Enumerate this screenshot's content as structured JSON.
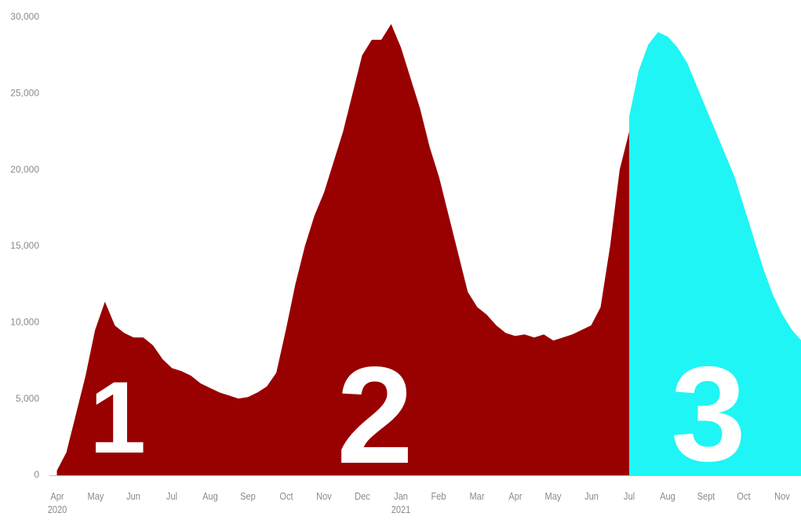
{
  "chart_data": {
    "type": "area",
    "categories": [
      "Apr 2020",
      null,
      null,
      null,
      "May",
      null,
      null,
      null,
      "Jun",
      null,
      null,
      null,
      "Jul",
      null,
      null,
      null,
      "Aug",
      null,
      null,
      null,
      "Sep",
      null,
      null,
      null,
      "Oct",
      null,
      null,
      null,
      "Nov",
      null,
      null,
      null,
      "Dec",
      null,
      null,
      null,
      "Jan 2021",
      null,
      null,
      null,
      "Feb",
      null,
      null,
      null,
      "Mar",
      null,
      null,
      null,
      "Apr",
      null,
      null,
      null,
      "May",
      null,
      null,
      null,
      "Jun",
      null,
      null,
      null,
      "Jul",
      null,
      null,
      null,
      "Aug",
      null,
      null,
      null,
      "Sept",
      null,
      null,
      null,
      "Oct",
      null,
      null,
      null,
      "Nov",
      null,
      null
    ],
    "series": [
      {
        "color": "#990000",
        "values": [
          300,
          1500,
          4000,
          6500,
          9500,
          11300,
          9800,
          9300,
          9000,
          9000,
          8500,
          7600,
          7000,
          6800,
          6500,
          6000,
          5700,
          5400,
          5200,
          5000,
          5100,
          5400,
          5800,
          6700,
          9500,
          12500,
          15000,
          17000,
          18500,
          20500,
          22500,
          25000,
          27500,
          28500,
          28500,
          29500,
          28000,
          26000,
          24000,
          21500,
          19500,
          17000,
          14500,
          12000,
          11000,
          10500,
          9800,
          9300,
          9100,
          9200,
          9000,
          9200,
          8800,
          9000,
          9200,
          9500,
          9800,
          11000,
          15000,
          20000,
          22500,
          null,
          null,
          null,
          null,
          null,
          null,
          null,
          null,
          null,
          null,
          null,
          null,
          null,
          null,
          null,
          null,
          null,
          null
        ]
      },
      {
        "color": "#1ff5f5",
        "values": [
          null,
          null,
          null,
          null,
          null,
          null,
          null,
          null,
          null,
          null,
          null,
          null,
          null,
          null,
          null,
          null,
          null,
          null,
          null,
          null,
          null,
          null,
          null,
          null,
          null,
          null,
          null,
          null,
          null,
          null,
          null,
          null,
          null,
          null,
          null,
          null,
          null,
          null,
          null,
          null,
          null,
          null,
          null,
          null,
          null,
          null,
          null,
          null,
          null,
          null,
          null,
          null,
          null,
          null,
          null,
          null,
          null,
          null,
          null,
          null,
          23500,
          26500,
          28200,
          29000,
          28700,
          28000,
          27000,
          25500,
          24000,
          22500,
          21000,
          19500,
          17500,
          15500,
          13500,
          11800,
          10500,
          9500,
          8800
        ]
      }
    ],
    "annotations": [
      "1",
      "2",
      "3"
    ],
    "ylim": [
      0,
      30000
    ],
    "yticks": [
      0,
      {
        "value": 5000,
        "label": "5,000"
      },
      {
        "value": 10000,
        "label": "10,000"
      },
      {
        "value": 15000,
        "label": "15,000"
      },
      {
        "value": 20000,
        "label": "20,000"
      },
      {
        "value": 25000,
        "label": "25,000"
      },
      {
        "value": 30000,
        "label": "30,000"
      }
    ],
    "grid": false
  }
}
